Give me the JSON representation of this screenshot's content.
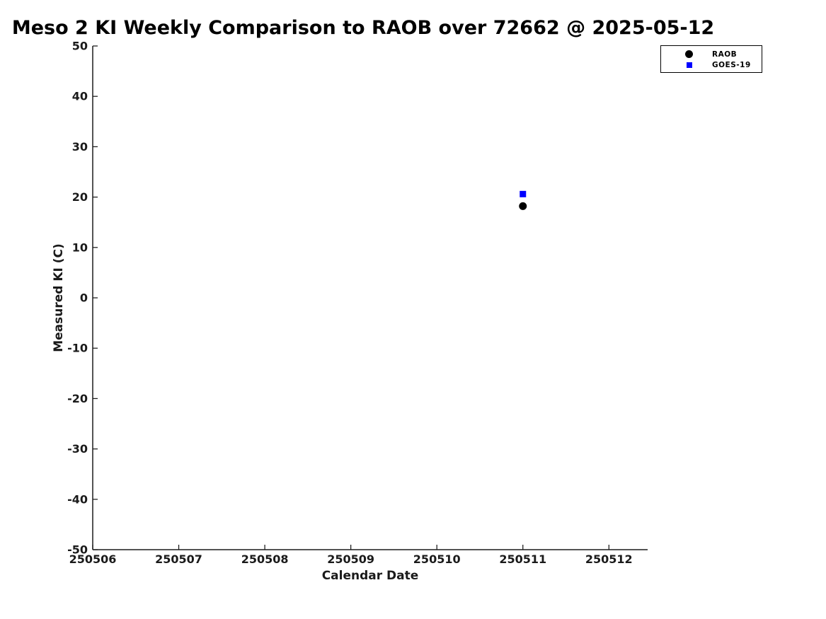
{
  "page": {
    "background": "#ffffff"
  },
  "chart_data": {
    "type": "scatter",
    "title": "Meso 2 KI Weekly Comparison to RAOB over 72662 @ 2025-05-12",
    "xlabel": "Calendar Date",
    "ylabel": "Measured KI (C)",
    "xlim": [
      250506,
      250512.45
    ],
    "ylim": [
      -50,
      50
    ],
    "x_ticks": [
      250506,
      250507,
      250508,
      250509,
      250510,
      250511,
      250512
    ],
    "y_ticks": [
      50,
      40,
      30,
      20,
      10,
      0,
      -10,
      -20,
      -30,
      -40,
      -50
    ],
    "grid": false,
    "axis_color": "#1a1a1a",
    "legend": {
      "position": "top-right",
      "border_color": "#000000",
      "background": "#ffffff",
      "entries": [
        "RAOB",
        "GOES-19"
      ]
    },
    "series": [
      {
        "name": "RAOB",
        "marker": "circle",
        "color": "#000000",
        "points": [
          {
            "x": 250511,
            "y": 18.2
          }
        ]
      },
      {
        "name": "GOES-19",
        "marker": "square",
        "color": "#0000ff",
        "points": [
          {
            "x": 250511,
            "y": 20.6
          }
        ]
      }
    ]
  }
}
